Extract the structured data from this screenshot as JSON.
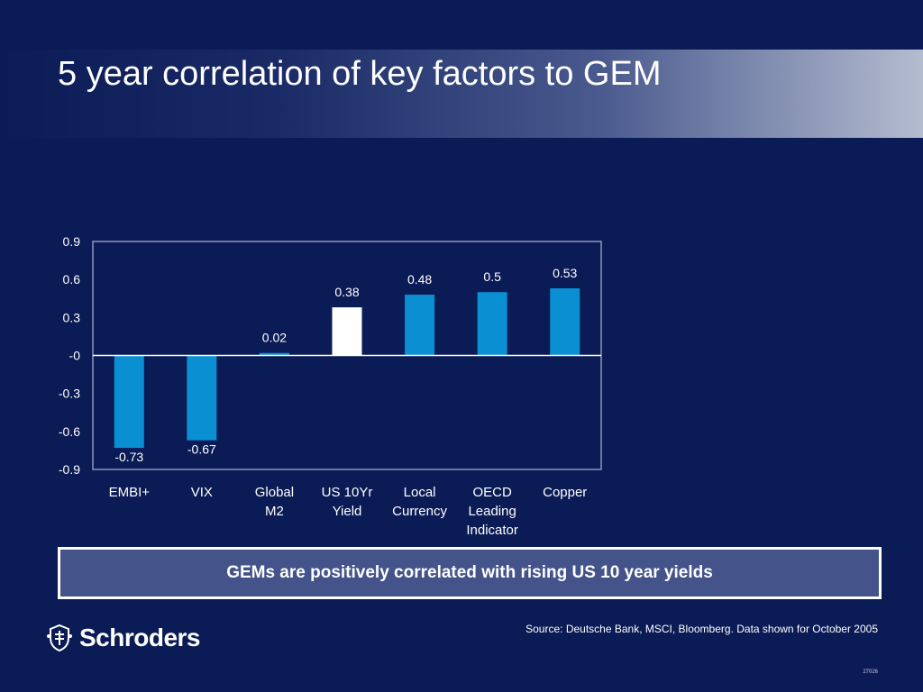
{
  "slide": {
    "title": "5 year correlation of key factors to GEM",
    "callout": "GEMs are positively correlated with rising US 10 year yields",
    "source": "Source: Deutsche Bank, MSCI, Bloomberg. Data shown for October 2005",
    "page_number": "27026",
    "brand": "Schroders"
  },
  "chart_data": {
    "type": "bar",
    "categories": [
      [
        "EMBI+"
      ],
      [
        "VIX"
      ],
      [
        "Global",
        "M2"
      ],
      [
        "US 10Yr",
        "Yield"
      ],
      [
        "Local",
        "Currency"
      ],
      [
        "OECD",
        "Leading",
        "Indicator"
      ],
      [
        "Copper"
      ]
    ],
    "values": [
      -0.73,
      -0.67,
      0.02,
      0.38,
      0.48,
      0.5,
      0.53
    ],
    "value_labels": [
      "-0.73",
      "-0.67",
      "0.02",
      "0.38",
      "0.48",
      "0.5",
      "0.53"
    ],
    "ylim": [
      -0.9,
      0.9
    ],
    "yticks": [
      0.9,
      0.6,
      0.3,
      0,
      -0.3,
      -0.6,
      -0.9
    ],
    "ytick_labels": [
      "0.9",
      "0.6",
      "0.3",
      "-0",
      "-0.3",
      "-0.6",
      "-0.9"
    ],
    "highlight_index": 3,
    "colors": {
      "bar": "#0a8fd3",
      "highlight": "#ffffff",
      "axis": "#ffffff",
      "label": "#ffffff"
    }
  }
}
